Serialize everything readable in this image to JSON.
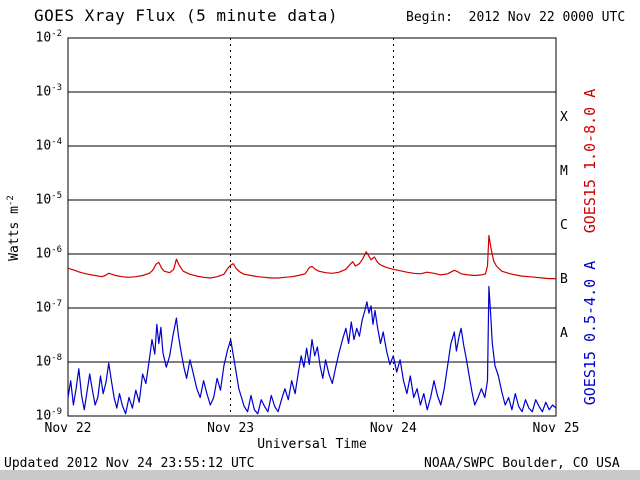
{
  "title": "GOES Xray Flux (5 minute data)",
  "begin_label": "Begin:  2012 Nov 22 0000 UTC",
  "updated": "Updated 2012 Nov 24 23:55:12 UTC",
  "credit": "NOAA/SWPC Boulder, CO USA",
  "axes": {
    "y_label": "Watts m",
    "y_label_exp": "-2",
    "x_label": "Universal Time",
    "y_tick_base": "10",
    "y_tick_exponents": [
      "-2",
      "-3",
      "-4",
      "-5",
      "-6",
      "-7",
      "-8",
      "-9"
    ],
    "x_tick_labels": [
      "Nov 22",
      "Nov 23",
      "Nov 24",
      "Nov 25"
    ],
    "x_tick_hours": [
      0,
      24,
      48,
      72
    ],
    "class_letters": [
      "X",
      "M",
      "C",
      "B",
      "A"
    ],
    "class_center_exponents": [
      -3.5,
      -4.5,
      -5.5,
      -6.5,
      -7.5
    ]
  },
  "series_labels": {
    "long": "GOES15 1.0-8.0 A",
    "short": "GOES15 0.5-4.0 A"
  },
  "colors": {
    "long": "#d00000",
    "short": "#0000d0",
    "axis": "#000000"
  },
  "chart_data": {
    "type": "line",
    "title": "GOES Xray Flux (5 minute data)",
    "xlabel": "Universal Time",
    "ylabel": "Watts m^-2",
    "x_unit": "hours since 2012 Nov 22 0000 UTC",
    "x_range": [
      0,
      72
    ],
    "y_scale": "log",
    "y_range": [
      1e-09,
      0.01
    ],
    "grid": "decade horizontal solid, day vertical dashed",
    "x_day_ticks": [
      "Nov 22",
      "Nov 23",
      "Nov 24",
      "Nov 25"
    ],
    "series": [
      {
        "name": "GOES15 1.0-8.0 A",
        "color": "#d00000",
        "points": [
          [
            0,
            5.5e-07
          ],
          [
            0.5,
            5.2e-07
          ],
          [
            1,
            5e-07
          ],
          [
            1.5,
            4.7e-07
          ],
          [
            2,
            4.5e-07
          ],
          [
            3,
            4.2e-07
          ],
          [
            4,
            4e-07
          ],
          [
            5,
            3.8e-07
          ],
          [
            5.5,
            4e-07
          ],
          [
            6,
            4.4e-07
          ],
          [
            6.5,
            4.2e-07
          ],
          [
            7,
            4e-07
          ],
          [
            8,
            3.8e-07
          ],
          [
            9,
            3.7e-07
          ],
          [
            10,
            3.8e-07
          ],
          [
            11,
            4e-07
          ],
          [
            12,
            4.4e-07
          ],
          [
            12.5,
            5e-07
          ],
          [
            13,
            6.5e-07
          ],
          [
            13.4,
            7e-07
          ],
          [
            13.8,
            5.5e-07
          ],
          [
            14.2,
            4.8e-07
          ],
          [
            15,
            4.5e-07
          ],
          [
            15.6,
            5.2e-07
          ],
          [
            16,
            8e-07
          ],
          [
            16.4,
            6.2e-07
          ],
          [
            17,
            4.8e-07
          ],
          [
            18,
            4.2e-07
          ],
          [
            19,
            3.9e-07
          ],
          [
            20,
            3.7e-07
          ],
          [
            21,
            3.6e-07
          ],
          [
            22,
            3.8e-07
          ],
          [
            23,
            4.2e-07
          ],
          [
            23.6,
            5.5e-07
          ],
          [
            24,
            6.2e-07
          ],
          [
            24.4,
            6.6e-07
          ],
          [
            24.8,
            5.4e-07
          ],
          [
            25.4,
            4.6e-07
          ],
          [
            26,
            4.2e-07
          ],
          [
            27,
            4e-07
          ],
          [
            28,
            3.8e-07
          ],
          [
            29,
            3.7e-07
          ],
          [
            30,
            3.6e-07
          ],
          [
            31,
            3.6e-07
          ],
          [
            32,
            3.7e-07
          ],
          [
            33,
            3.8e-07
          ],
          [
            34,
            4e-07
          ],
          [
            35,
            4.3e-07
          ],
          [
            35.6,
            5.6e-07
          ],
          [
            36,
            5.9e-07
          ],
          [
            36.5,
            5.2e-07
          ],
          [
            37,
            4.8e-07
          ],
          [
            38,
            4.5e-07
          ],
          [
            39,
            4.4e-07
          ],
          [
            40,
            4.6e-07
          ],
          [
            41,
            5.2e-07
          ],
          [
            41.6,
            6.4e-07
          ],
          [
            42,
            7.2e-07
          ],
          [
            42.4,
            6e-07
          ],
          [
            43,
            6.6e-07
          ],
          [
            43.5,
            8.2e-07
          ],
          [
            44,
            1.1e-06
          ],
          [
            44.3,
            9.5e-07
          ],
          [
            44.7,
            7.8e-07
          ],
          [
            45.2,
            8.8e-07
          ],
          [
            45.6,
            7.2e-07
          ],
          [
            46,
            6.4e-07
          ],
          [
            47,
            5.6e-07
          ],
          [
            48,
            5.2e-07
          ],
          [
            49,
            4.9e-07
          ],
          [
            50,
            4.6e-07
          ],
          [
            51,
            4.4e-07
          ],
          [
            52,
            4.3e-07
          ],
          [
            53,
            4.6e-07
          ],
          [
            54,
            4.4e-07
          ],
          [
            55,
            4.1e-07
          ],
          [
            56,
            4.3e-07
          ],
          [
            57,
            5e-07
          ],
          [
            57.5,
            4.7e-07
          ],
          [
            58,
            4.3e-07
          ],
          [
            59,
            4.1e-07
          ],
          [
            60,
            4e-07
          ],
          [
            61,
            4.1e-07
          ],
          [
            61.6,
            4.3e-07
          ],
          [
            61.9,
            6e-07
          ],
          [
            62.1,
            2.2e-06
          ],
          [
            62.4,
            1.3e-06
          ],
          [
            62.8,
            7.5e-07
          ],
          [
            63.2,
            6e-07
          ],
          [
            64,
            4.8e-07
          ],
          [
            65,
            4.4e-07
          ],
          [
            66,
            4.1e-07
          ],
          [
            67,
            3.9e-07
          ],
          [
            68,
            3.8e-07
          ],
          [
            69,
            3.7e-07
          ],
          [
            70,
            3.6e-07
          ],
          [
            71,
            3.5e-07
          ],
          [
            72,
            3.5e-07
          ]
        ]
      },
      {
        "name": "GOES15 0.5-4.0 A",
        "color": "#0000d0",
        "points": [
          [
            0,
            2.2e-09
          ],
          [
            0.4,
            4.5e-09
          ],
          [
            0.8,
            1.6e-09
          ],
          [
            1.2,
            3.2e-09
          ],
          [
            1.6,
            7.5e-09
          ],
          [
            2,
            2.4e-09
          ],
          [
            2.4,
            1.3e-09
          ],
          [
            2.8,
            2.8e-09
          ],
          [
            3.2,
            6e-09
          ],
          [
            3.6,
            3e-09
          ],
          [
            4,
            1.6e-09
          ],
          [
            4.4,
            2.2e-09
          ],
          [
            4.8,
            5.5e-09
          ],
          [
            5.2,
            2.6e-09
          ],
          [
            5.6,
            4.2e-09
          ],
          [
            6,
            9.5e-09
          ],
          [
            6.4,
            4.5e-09
          ],
          [
            6.8,
            2.2e-09
          ],
          [
            7.2,
            1.4e-09
          ],
          [
            7.6,
            2.6e-09
          ],
          [
            8,
            1.6e-09
          ],
          [
            8.5,
            1.1e-09
          ],
          [
            9,
            2.2e-09
          ],
          [
            9.5,
            1.4e-09
          ],
          [
            10,
            3e-09
          ],
          [
            10.5,
            1.8e-09
          ],
          [
            11,
            6e-09
          ],
          [
            11.5,
            4e-09
          ],
          [
            12,
            1.1e-08
          ],
          [
            12.4,
            2.6e-08
          ],
          [
            12.8,
            1.4e-08
          ],
          [
            13.1,
            5e-08
          ],
          [
            13.4,
            2.2e-08
          ],
          [
            13.7,
            4.4e-08
          ],
          [
            14,
            1.5e-08
          ],
          [
            14.5,
            8e-09
          ],
          [
            15,
            1.3e-08
          ],
          [
            15.5,
            3.2e-08
          ],
          [
            16,
            6.5e-08
          ],
          [
            16.3,
            3e-08
          ],
          [
            16.7,
            1.5e-08
          ],
          [
            17.1,
            8e-09
          ],
          [
            17.5,
            5e-09
          ],
          [
            18,
            1.1e-08
          ],
          [
            18.5,
            6e-09
          ],
          [
            19,
            3.2e-09
          ],
          [
            19.5,
            2.2e-09
          ],
          [
            20,
            4.5e-09
          ],
          [
            20.5,
            2.6e-09
          ],
          [
            21,
            1.6e-09
          ],
          [
            21.5,
            2.2e-09
          ],
          [
            22,
            5e-09
          ],
          [
            22.5,
            3e-09
          ],
          [
            23,
            8.5e-09
          ],
          [
            23.5,
            1.6e-08
          ],
          [
            24,
            2.6e-08
          ],
          [
            24.4,
            1.3e-08
          ],
          [
            24.8,
            6.5e-09
          ],
          [
            25.2,
            3.2e-09
          ],
          [
            25.6,
            2.2e-09
          ],
          [
            26,
            1.5e-09
          ],
          [
            26.5,
            1.2e-09
          ],
          [
            27,
            2.4e-09
          ],
          [
            27.5,
            1.3e-09
          ],
          [
            28,
            1.1e-09
          ],
          [
            28.5,
            2e-09
          ],
          [
            29,
            1.5e-09
          ],
          [
            29.5,
            1.2e-09
          ],
          [
            30,
            2.4e-09
          ],
          [
            30.5,
            1.5e-09
          ],
          [
            31,
            1.2e-09
          ],
          [
            31.5,
            2e-09
          ],
          [
            32,
            3.2e-09
          ],
          [
            32.5,
            2e-09
          ],
          [
            33,
            4.5e-09
          ],
          [
            33.5,
            2.6e-09
          ],
          [
            34,
            6.5e-09
          ],
          [
            34.4,
            1.3e-08
          ],
          [
            34.8,
            8e-09
          ],
          [
            35.2,
            1.8e-08
          ],
          [
            35.6,
            9e-09
          ],
          [
            36,
            2.6e-08
          ],
          [
            36.4,
            1.3e-08
          ],
          [
            36.8,
            1.9e-08
          ],
          [
            37.2,
            8.5e-09
          ],
          [
            37.6,
            5e-09
          ],
          [
            38,
            1.1e-08
          ],
          [
            38.5,
            6e-09
          ],
          [
            39,
            4e-09
          ],
          [
            39.5,
            8e-09
          ],
          [
            40,
            1.5e-08
          ],
          [
            40.5,
            2.6e-08
          ],
          [
            41,
            4.2e-08
          ],
          [
            41.4,
            2.2e-08
          ],
          [
            41.8,
            5.5e-08
          ],
          [
            42.2,
            2.6e-08
          ],
          [
            42.6,
            4.2e-08
          ],
          [
            43,
            3e-08
          ],
          [
            43.4,
            6e-08
          ],
          [
            43.8,
            9e-08
          ],
          [
            44.1,
            1.3e-07
          ],
          [
            44.4,
            8e-08
          ],
          [
            44.7,
            1.1e-07
          ],
          [
            45,
            5e-08
          ],
          [
            45.3,
            9e-08
          ],
          [
            45.7,
            4.2e-08
          ],
          [
            46.1,
            2.2e-08
          ],
          [
            46.5,
            3.6e-08
          ],
          [
            47,
            1.6e-08
          ],
          [
            47.5,
            9e-09
          ],
          [
            48,
            1.3e-08
          ],
          [
            48.5,
            6.5e-09
          ],
          [
            49,
            1.1e-08
          ],
          [
            49.5,
            4.5e-09
          ],
          [
            50,
            2.6e-09
          ],
          [
            50.5,
            5.5e-09
          ],
          [
            51,
            2.2e-09
          ],
          [
            51.5,
            3.2e-09
          ],
          [
            52,
            1.6e-09
          ],
          [
            52.5,
            2.6e-09
          ],
          [
            53,
            1.3e-09
          ],
          [
            53.5,
            2.2e-09
          ],
          [
            54,
            4.5e-09
          ],
          [
            54.5,
            2.4e-09
          ],
          [
            55,
            1.6e-09
          ],
          [
            55.5,
            3.2e-09
          ],
          [
            56,
            8.5e-09
          ],
          [
            56.5,
            2.2e-08
          ],
          [
            57,
            3.6e-08
          ],
          [
            57.3,
            1.6e-08
          ],
          [
            57.7,
            3e-08
          ],
          [
            58,
            4.2e-08
          ],
          [
            58.4,
            2e-08
          ],
          [
            58.8,
            1.1e-08
          ],
          [
            59.2,
            5.5e-09
          ],
          [
            59.6,
            2.8e-09
          ],
          [
            60,
            1.6e-09
          ],
          [
            60.5,
            2.2e-09
          ],
          [
            61,
            3.2e-09
          ],
          [
            61.5,
            2.2e-09
          ],
          [
            61.9,
            4.5e-09
          ],
          [
            62.1,
            2.5e-07
          ],
          [
            62.35,
            8e-08
          ],
          [
            62.6,
            2.2e-08
          ],
          [
            63,
            8.5e-09
          ],
          [
            63.5,
            5.5e-09
          ],
          [
            64,
            2.8e-09
          ],
          [
            64.5,
            1.6e-09
          ],
          [
            65,
            2.2e-09
          ],
          [
            65.5,
            1.3e-09
          ],
          [
            66,
            2.6e-09
          ],
          [
            66.5,
            1.5e-09
          ],
          [
            67,
            1.2e-09
          ],
          [
            67.5,
            2e-09
          ],
          [
            68,
            1.4e-09
          ],
          [
            68.5,
            1.2e-09
          ],
          [
            69,
            2e-09
          ],
          [
            69.5,
            1.5e-09
          ],
          [
            70,
            1.2e-09
          ],
          [
            70.5,
            1.8e-09
          ],
          [
            71,
            1.3e-09
          ],
          [
            71.5,
            1.6e-09
          ],
          [
            72,
            1.4e-09
          ]
        ]
      }
    ]
  }
}
